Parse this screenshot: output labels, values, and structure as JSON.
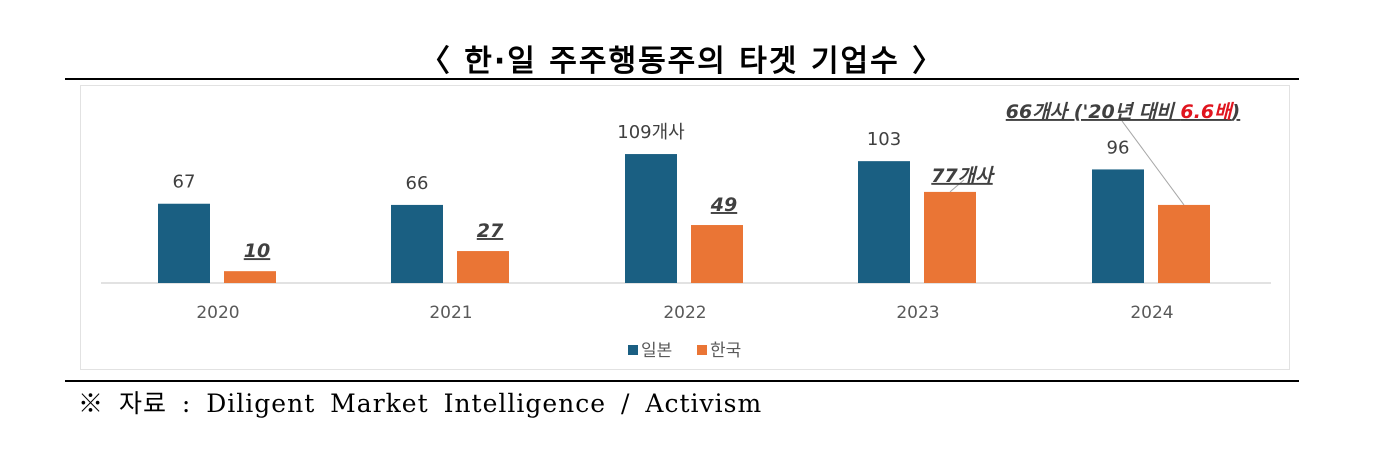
{
  "title": "〈 한·일 주주행동주의 타겟 기업수 〉",
  "source": "※ 자료 : Diligent Market Intelligence / Activism",
  "chart_data": {
    "type": "bar",
    "title": "",
    "xlabel": "",
    "ylabel": "",
    "ylim": [
      0,
      115
    ],
    "grid": false,
    "legend_position": "bottom",
    "categories": [
      "2020",
      "2021",
      "2022",
      "2023",
      "2024"
    ],
    "series": [
      {
        "name": "일본",
        "color": "#1a5f82",
        "values": [
          67,
          66,
          109,
          103,
          96
        ],
        "labels": [
          "67",
          "66",
          "109개사",
          "103",
          "96"
        ]
      },
      {
        "name": "한국",
        "color": "#ea7535",
        "values": [
          10,
          27,
          49,
          77,
          66
        ],
        "labels": [
          "10",
          "27",
          "49",
          "77개사",
          ""
        ]
      }
    ],
    "annotations": [
      {
        "category": "2024",
        "series": "한국",
        "text_prefix": "66개사 ('20년 대비 ",
        "text_highlight": "6.6배",
        "text_suffix": ")",
        "highlight_color": "#e0141e"
      }
    ]
  }
}
